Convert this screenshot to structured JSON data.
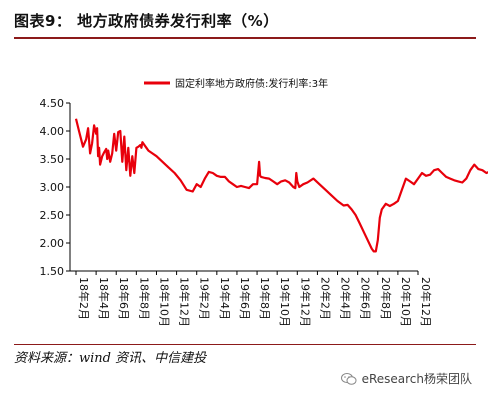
{
  "figure": {
    "title": "图表9：  地方政府债券发行利率（%）",
    "source": "资料来源：wind 资讯、中信建投",
    "watermark": "eResearch杨荣团队",
    "line_color": "#e8000b",
    "accent_color": "#8c1a1a",
    "watermark_icon": "wechat-icon"
  },
  "chart_data": {
    "type": "line",
    "legend_position": "top-center",
    "grid": false,
    "ylim": [
      1.5,
      4.5
    ],
    "yticks": [
      "1.50",
      "2.00",
      "2.50",
      "3.00",
      "3.50",
      "4.00",
      "4.50"
    ],
    "xticks": [
      "18年2月",
      "18年4月",
      "18年6月",
      "18年8月",
      "18年10月",
      "18年12月",
      "19年2月",
      "19年4月",
      "19年6月",
      "19年8月",
      "19年10月",
      "19年12月",
      "20年2月",
      "20年4月",
      "20年6月",
      "20年8月",
      "20年10月",
      "20年12月"
    ],
    "series": [
      {
        "name": "固定利率地方政府债:发行利率:3年",
        "x": [
          0,
          0.15,
          0.35,
          0.5,
          0.6,
          0.7,
          0.8,
          0.9,
          1.0,
          1.05,
          1.1,
          1.15,
          1.2,
          1.3,
          1.4,
          1.5,
          1.55,
          1.6,
          1.7,
          1.8,
          1.9,
          2.0,
          2.1,
          2.2,
          2.3,
          2.4,
          2.5,
          2.6,
          2.7,
          2.8,
          2.9,
          3.0,
          3.1,
          3.2,
          3.25,
          3.3,
          3.4,
          3.5,
          3.6,
          3.8,
          4.0,
          4.3,
          4.6,
          4.9,
          5.2,
          5.5,
          5.8,
          6.0,
          6.2,
          6.4,
          6.6,
          6.8,
          7.0,
          7.2,
          7.4,
          7.6,
          7.8,
          8.0,
          8.2,
          8.4,
          8.6,
          8.8,
          9.0,
          9.1,
          9.15,
          9.2,
          9.4,
          9.6,
          9.8,
          10.0,
          10.2,
          10.4,
          10.6,
          10.8,
          10.9,
          10.95,
          11.0,
          11.1,
          11.3,
          11.5,
          11.8,
          12.1,
          12.4,
          12.7,
          13.0,
          13.3,
          13.5,
          13.7,
          13.9,
          14.1,
          14.3,
          14.5,
          14.7,
          14.8,
          14.9,
          15.0,
          15.1,
          15.2,
          15.4,
          15.6,
          15.8,
          16.0,
          16.2,
          16.4,
          16.6,
          16.8,
          17.0,
          17.2,
          17.4,
          17.6,
          17.8,
          18.0,
          18.2,
          18.4,
          18.6,
          18.8,
          19.0,
          19.2,
          19.4,
          19.6,
          19.8,
          20.0,
          20.2,
          20.4,
          20.6,
          20.8,
          21.0
        ],
        "values": [
          4.22,
          4.0,
          3.72,
          3.85,
          4.05,
          3.6,
          3.78,
          4.1,
          3.95,
          4.05,
          3.55,
          3.7,
          3.4,
          3.55,
          3.62,
          3.68,
          3.5,
          3.65,
          3.45,
          3.6,
          3.95,
          3.65,
          3.98,
          4.0,
          3.45,
          3.9,
          3.3,
          3.7,
          3.2,
          3.55,
          3.25,
          3.7,
          3.72,
          3.75,
          3.7,
          3.8,
          3.75,
          3.7,
          3.65,
          3.6,
          3.55,
          3.45,
          3.35,
          3.25,
          3.12,
          2.95,
          2.92,
          3.05,
          3.0,
          3.15,
          3.27,
          3.25,
          3.2,
          3.18,
          3.18,
          3.1,
          3.05,
          3.0,
          3.02,
          3.0,
          2.98,
          3.05,
          3.05,
          3.45,
          3.2,
          3.18,
          3.16,
          3.15,
          3.1,
          3.05,
          3.1,
          3.12,
          3.08,
          3.0,
          2.98,
          3.25,
          3.1,
          3.0,
          3.05,
          3.08,
          3.15,
          3.05,
          2.95,
          2.85,
          2.75,
          2.67,
          2.68,
          2.6,
          2.5,
          2.35,
          2.2,
          2.05,
          1.9,
          1.85,
          1.85,
          2.05,
          2.45,
          2.6,
          2.7,
          2.66,
          2.7,
          2.75,
          2.95,
          3.15,
          3.1,
          3.05,
          3.15,
          3.25,
          3.2,
          3.22,
          3.3,
          3.32,
          3.25,
          3.18,
          3.15,
          3.12,
          3.1,
          3.08,
          3.15,
          3.3,
          3.4,
          3.32,
          3.3,
          3.25,
          3.28,
          3.2,
          3.18
        ]
      }
    ]
  }
}
